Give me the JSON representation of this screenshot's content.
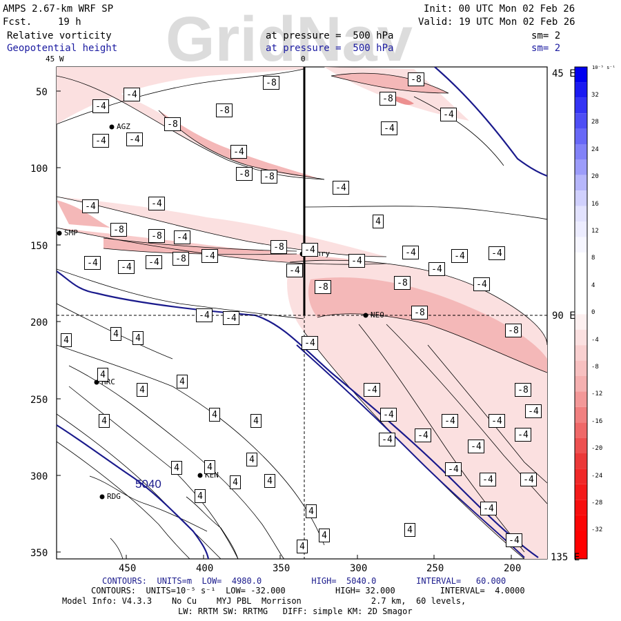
{
  "header": {
    "model": "AMPS 2.67-km WRF SP",
    "fcst_label": "Fcst.",
    "fcst_value": "19 h",
    "init": "Init: 00 UTC Mon 02 Feb 26",
    "valid": "Valid: 19 UTC Mon 02 Feb 26",
    "field1_name": "Relative vorticity",
    "field1_level": "at pressure =  500 hPa",
    "field1_smooth": "sm= 2",
    "field2_name": "Geopotential height",
    "field2_level": "at pressure =  500 hPa",
    "field2_smooth": "sm= 2",
    "watermark": "GridNav"
  },
  "axes": {
    "top_labels": [
      "45 W",
      "0"
    ],
    "right_labels": [
      "45 E",
      "90 E",
      "135 E"
    ],
    "y_ticks": [
      "50",
      "100",
      "150",
      "200",
      "250",
      "300",
      "350"
    ],
    "x_ticks": [
      "450",
      "400",
      "350",
      "300",
      "250",
      "200"
    ]
  },
  "stations": [
    {
      "name": "AGZ"
    },
    {
      "name": "SMP"
    },
    {
      "name": "Henry"
    },
    {
      "name": "NEO"
    },
    {
      "name": "HRC"
    },
    {
      "name": "KEN"
    },
    {
      "name": "RDG"
    }
  ],
  "height_contour_label": "5040",
  "colorbar": {
    "unit": "10⁻⁵ s⁻¹",
    "labels": [
      "32",
      "28",
      "24",
      "20",
      "16",
      "12",
      "8",
      "4",
      "0",
      "-4",
      "-8",
      "-12",
      "-16",
      "-20",
      "-24",
      "-28",
      "-32"
    ]
  },
  "footer": {
    "line1": "CONTOURS:  UNITS=m  LOW=  4980.0          HIGH=  5040.0        INTERVAL=   60.000",
    "line2": "CONTOURS:  UNITS=10⁻⁵ s⁻¹  LOW= -32.000          HIGH= 32.000         INTERVAL=  4.0000",
    "line3": "Model Info: V4.3.3    No Cu    MYJ PBL  Morrison              2.7 km,  60 levels,",
    "line4": "LW: RRTM SW: RRTMG   DIFF: simple KM: 2D Smagor"
  },
  "contour_labels": {
    "minus4": "-4",
    "minus8": "-8",
    "plus4": "4"
  },
  "colors": {
    "frame": "#000000",
    "height_contour": "#1a1a8c",
    "negative_fill_light": "#fbe0e0",
    "negative_fill_mid": "#f4b8b8",
    "negative_fill_dark": "#ec9090",
    "watermark": "#dcdcdc"
  }
}
